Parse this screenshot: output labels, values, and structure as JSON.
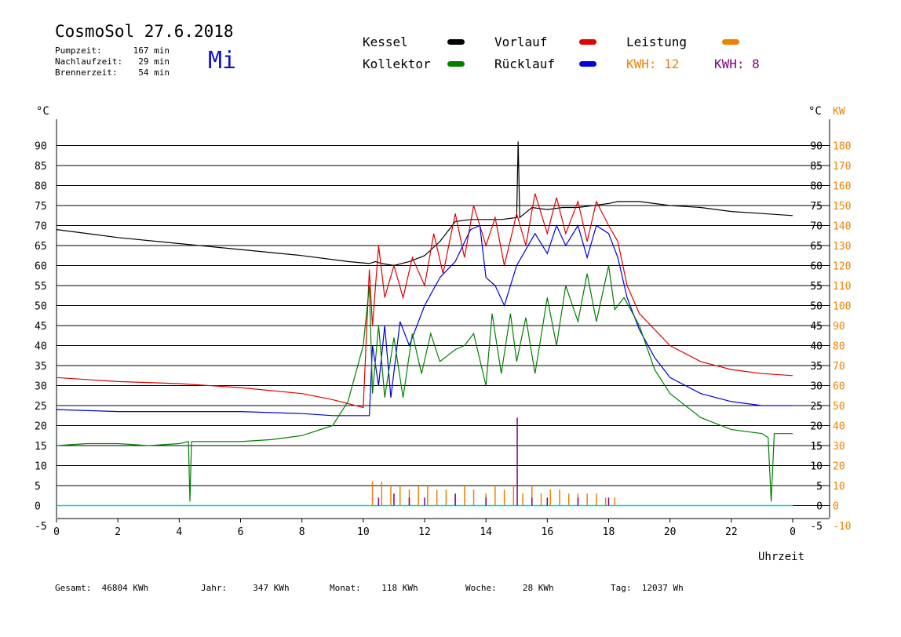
{
  "header": {
    "title": "CosmoSol 27.6.2018",
    "weekday": "Mi",
    "pump_label": "Pumpzeit:",
    "pump_value": "167 min",
    "nach_label": "Nachlaufzeit:",
    "nach_value": "29 min",
    "brenner_label": "Brennerzeit:",
    "brenner_value": "54 min"
  },
  "legend": {
    "kessel": "Kessel",
    "kollektor": "Kollektor",
    "vorlauf": "Vorlauf",
    "ruecklauf": "Rücklauf",
    "leistung": "Leistung",
    "kwh1": "KWH: 12",
    "kwh2": "KWH: 8"
  },
  "colors": {
    "kessel": "#000000",
    "kollektor": "#008000",
    "vorlauf": "#e00000",
    "ruecklauf": "#0000e0",
    "leistung": "#f08000",
    "kwh2": "#800080",
    "pump": "#00d0d0"
  },
  "footer": {
    "gesamt_label": "Gesamt:",
    "gesamt_value": "46804 KWh",
    "jahr_label": "Jahr:",
    "jahr_value": "347 KWh",
    "monat_label": "Monat:",
    "monat_value": "118 KWh",
    "woche_label": "Woche:",
    "woche_value": "28 KWh",
    "tag_label": "Tag:",
    "tag_value": "12037 Wh"
  },
  "chart_data": {
    "type": "line",
    "xlabel": "Uhrzeit",
    "ylabel_left": "°C",
    "ylabel_right_temp": "°C",
    "ylabel_right_power": "KW",
    "xlim": [
      0,
      24
    ],
    "ylim": [
      -5,
      95
    ],
    "ylim_power": [
      -10,
      190
    ],
    "x_ticks": [
      "0",
      "2",
      "4",
      "6",
      "8",
      "10",
      "12",
      "14",
      "16",
      "18",
      "20",
      "22",
      "0"
    ],
    "y_ticks": [
      -5,
      0,
      5,
      10,
      15,
      20,
      25,
      30,
      35,
      40,
      45,
      50,
      55,
      60,
      65,
      70,
      75,
      80,
      85,
      90
    ],
    "y_ticks_power": [
      -10,
      0,
      10,
      20,
      30,
      40,
      50,
      60,
      70,
      80,
      90,
      100,
      110,
      120,
      130,
      140,
      150,
      160,
      170,
      180
    ],
    "grid": "horizontal",
    "series": [
      {
        "name": "Kessel",
        "color": "#000000",
        "points": [
          [
            0,
            69
          ],
          [
            2,
            67
          ],
          [
            4,
            65.5
          ],
          [
            6,
            64
          ],
          [
            8,
            62.5
          ],
          [
            9.5,
            61
          ],
          [
            10.2,
            60.5
          ],
          [
            10.4,
            61
          ],
          [
            10.6,
            60.5
          ],
          [
            11,
            60
          ],
          [
            11.5,
            61
          ],
          [
            12,
            62.5
          ],
          [
            12.5,
            66
          ],
          [
            13,
            71
          ],
          [
            13.5,
            71.5
          ],
          [
            14,
            71.5
          ],
          [
            14.5,
            71.5
          ],
          [
            15,
            72
          ],
          [
            15.05,
            91
          ],
          [
            15.1,
            72
          ],
          [
            15.5,
            74.5
          ],
          [
            16,
            74
          ],
          [
            16.5,
            74.5
          ],
          [
            17,
            74.5
          ],
          [
            17.5,
            75
          ],
          [
            18,
            75.5
          ],
          [
            18.3,
            76
          ],
          [
            19,
            76
          ],
          [
            20,
            75
          ],
          [
            21,
            74.5
          ],
          [
            22,
            73.5
          ],
          [
            23,
            73
          ],
          [
            24,
            72.5
          ]
        ]
      },
      {
        "name": "Vorlauf",
        "color": "#e00000",
        "points": [
          [
            0,
            32
          ],
          [
            2,
            31
          ],
          [
            4,
            30.5
          ],
          [
            6,
            29.5
          ],
          [
            8,
            28
          ],
          [
            9,
            26.5
          ],
          [
            10,
            24.5
          ],
          [
            10.2,
            59
          ],
          [
            10.3,
            45
          ],
          [
            10.5,
            65
          ],
          [
            10.7,
            52
          ],
          [
            11,
            60
          ],
          [
            11.3,
            52
          ],
          [
            11.6,
            62
          ],
          [
            12,
            55
          ],
          [
            12.3,
            68
          ],
          [
            12.6,
            58
          ],
          [
            13,
            73
          ],
          [
            13.3,
            62
          ],
          [
            13.6,
            75
          ],
          [
            14,
            65
          ],
          [
            14.3,
            72
          ],
          [
            14.6,
            60
          ],
          [
            15,
            73
          ],
          [
            15.3,
            65
          ],
          [
            15.6,
            78
          ],
          [
            16,
            68
          ],
          [
            16.3,
            77
          ],
          [
            16.6,
            68
          ],
          [
            17,
            76
          ],
          [
            17.3,
            66
          ],
          [
            17.6,
            76
          ],
          [
            18,
            70
          ],
          [
            18.3,
            66
          ],
          [
            18.6,
            55
          ],
          [
            19,
            48
          ],
          [
            20,
            40
          ],
          [
            21,
            36
          ],
          [
            22,
            34
          ],
          [
            23,
            33
          ],
          [
            24,
            32.5
          ]
        ]
      },
      {
        "name": "Rücklauf",
        "color": "#0000e0",
        "points": [
          [
            0,
            24
          ],
          [
            2,
            23.5
          ],
          [
            4,
            23.5
          ],
          [
            6,
            23.5
          ],
          [
            8,
            23
          ],
          [
            9,
            22.5
          ],
          [
            10.2,
            22.5
          ],
          [
            10.3,
            40
          ],
          [
            10.5,
            30
          ],
          [
            10.7,
            45
          ],
          [
            10.9,
            27
          ],
          [
            11.2,
            46
          ],
          [
            11.5,
            40
          ],
          [
            12,
            50
          ],
          [
            12.5,
            57
          ],
          [
            13,
            61
          ],
          [
            13.5,
            69
          ],
          [
            13.8,
            70
          ],
          [
            14,
            57
          ],
          [
            14.3,
            55
          ],
          [
            14.6,
            50
          ],
          [
            15,
            60
          ],
          [
            15.3,
            64
          ],
          [
            15.6,
            68
          ],
          [
            16,
            63
          ],
          [
            16.3,
            70
          ],
          [
            16.6,
            65
          ],
          [
            17,
            70
          ],
          [
            17.3,
            62
          ],
          [
            17.6,
            70
          ],
          [
            18,
            68
          ],
          [
            18.3,
            62
          ],
          [
            18.6,
            52
          ],
          [
            19,
            44
          ],
          [
            19.5,
            37
          ],
          [
            20,
            32
          ],
          [
            21,
            28
          ],
          [
            22,
            26
          ],
          [
            23,
            25
          ],
          [
            24,
            25
          ]
        ]
      },
      {
        "name": "Kollektor",
        "color": "#008000",
        "points": [
          [
            0,
            15
          ],
          [
            1,
            15.5
          ],
          [
            2,
            15.5
          ],
          [
            3,
            15
          ],
          [
            4,
            15.5
          ],
          [
            4.3,
            16
          ],
          [
            4.35,
            1
          ],
          [
            4.4,
            16
          ],
          [
            5,
            16
          ],
          [
            6,
            16
          ],
          [
            7,
            16.5
          ],
          [
            8,
            17.5
          ],
          [
            9,
            20
          ],
          [
            9.5,
            26
          ],
          [
            10,
            40
          ],
          [
            10.2,
            55
          ],
          [
            10.3,
            28
          ],
          [
            10.5,
            45
          ],
          [
            10.7,
            27
          ],
          [
            11,
            42
          ],
          [
            11.3,
            27
          ],
          [
            11.6,
            43
          ],
          [
            11.9,
            33
          ],
          [
            12.2,
            43
          ],
          [
            12.5,
            36
          ],
          [
            13,
            39
          ],
          [
            13.3,
            40
          ],
          [
            13.6,
            43
          ],
          [
            14,
            30
          ],
          [
            14.2,
            48
          ],
          [
            14.5,
            33
          ],
          [
            14.8,
            48
          ],
          [
            15,
            36
          ],
          [
            15.3,
            47
          ],
          [
            15.6,
            33
          ],
          [
            16,
            52
          ],
          [
            16.3,
            40
          ],
          [
            16.6,
            55
          ],
          [
            17,
            46
          ],
          [
            17.3,
            58
          ],
          [
            17.6,
            46
          ],
          [
            18,
            60
          ],
          [
            18.2,
            49
          ],
          [
            18.5,
            52
          ],
          [
            19,
            45
          ],
          [
            19.5,
            34
          ],
          [
            20,
            28
          ],
          [
            21,
            22
          ],
          [
            22,
            19
          ],
          [
            23,
            18
          ],
          [
            23.2,
            17
          ],
          [
            23.3,
            1
          ],
          [
            23.4,
            18
          ],
          [
            24,
            18
          ]
        ]
      },
      {
        "name": "Leistung",
        "color": "#f08000",
        "bars": [
          [
            10.3,
            6
          ],
          [
            10.6,
            6
          ],
          [
            10.9,
            5
          ],
          [
            11.2,
            5
          ],
          [
            11.5,
            4
          ],
          [
            11.8,
            5
          ],
          [
            12.1,
            5
          ],
          [
            12.4,
            4
          ],
          [
            12.7,
            4
          ],
          [
            13,
            3
          ],
          [
            13.3,
            5
          ],
          [
            13.6,
            4
          ],
          [
            14,
            3
          ],
          [
            14.3,
            5
          ],
          [
            14.6,
            4
          ],
          [
            14.9,
            5
          ],
          [
            15.2,
            3
          ],
          [
            15.5,
            5
          ],
          [
            15.8,
            3
          ],
          [
            16.1,
            4
          ],
          [
            16.4,
            4
          ],
          [
            16.7,
            3
          ],
          [
            17,
            3
          ],
          [
            17.3,
            3
          ],
          [
            17.6,
            3
          ],
          [
            17.9,
            2
          ],
          [
            18.2,
            2
          ]
        ]
      },
      {
        "name": "KWH: 8",
        "color": "#800080",
        "bars": [
          [
            10.5,
            2
          ],
          [
            11,
            3
          ],
          [
            11.5,
            2
          ],
          [
            12,
            2
          ],
          [
            13,
            3
          ],
          [
            14,
            2
          ],
          [
            15.02,
            22
          ],
          [
            15.5,
            2
          ],
          [
            16,
            2
          ],
          [
            17,
            2
          ],
          [
            18,
            2
          ]
        ]
      }
    ]
  }
}
